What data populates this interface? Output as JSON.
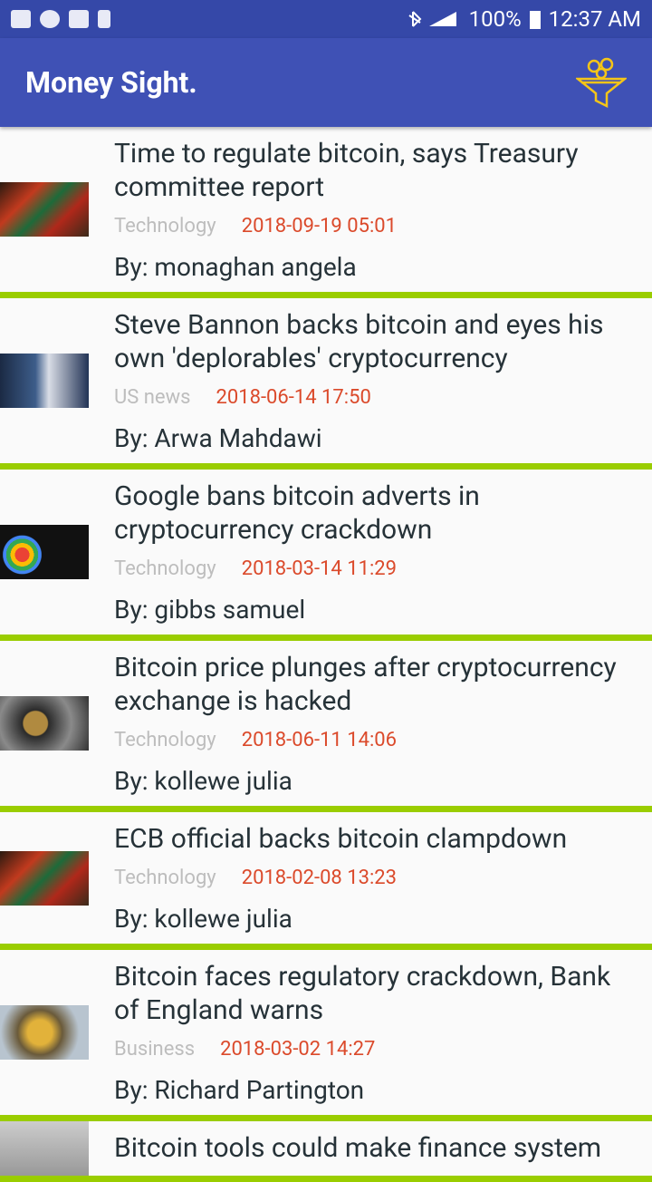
{
  "status_bar": {
    "battery": "100%",
    "time": "12:37 AM"
  },
  "app_bar": {
    "title": "Money Sight."
  },
  "articles": [
    {
      "title": "Time to regulate bitcoin, says Treasury committee report",
      "category": "Technology",
      "date": "2018-09-19 05:01",
      "author": "By: monaghan angela"
    },
    {
      "title": "Steve Bannon backs bitcoin and eyes his own 'deplorables' cryptocurrency",
      "category": "US news",
      "date": "2018-06-14 17:50",
      "author": "By: Arwa Mahdawi"
    },
    {
      "title": "Google bans bitcoin adverts in cryptocurrency crackdown",
      "category": "Technology",
      "date": "2018-03-14 11:29",
      "author": "By: gibbs samuel"
    },
    {
      "title": "Bitcoin price plunges after cryptocurrency exchange is hacked",
      "category": "Technology",
      "date": "2018-06-11 14:06",
      "author": "By: kollewe julia"
    },
    {
      "title": "ECB official backs bitcoin clampdown",
      "category": "Technology",
      "date": "2018-02-08 13:23",
      "author": "By: kollewe julia"
    },
    {
      "title": "Bitcoin faces regulatory crackdown, Bank of England warns",
      "category": "Business",
      "date": "2018-03-02 14:27",
      "author": "By: Richard Partington"
    },
    {
      "title": "Bitcoin tools could make finance system"
    }
  ]
}
